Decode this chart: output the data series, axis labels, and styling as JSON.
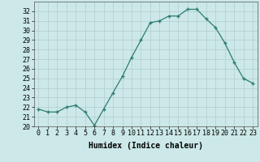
{
  "x": [
    0,
    1,
    2,
    3,
    4,
    5,
    6,
    7,
    8,
    9,
    10,
    11,
    12,
    13,
    14,
    15,
    16,
    17,
    18,
    19,
    20,
    21,
    22,
    23
  ],
  "y": [
    21.8,
    21.5,
    21.5,
    22.0,
    22.2,
    21.5,
    20.1,
    21.8,
    23.5,
    25.2,
    27.2,
    29.0,
    30.8,
    31.0,
    31.5,
    31.5,
    32.2,
    32.2,
    31.2,
    30.3,
    28.7,
    26.7,
    25.0,
    24.5
  ],
  "xlabel": "Humidex (Indice chaleur)",
  "xlim": [
    -0.5,
    23.5
  ],
  "ylim": [
    20,
    33
  ],
  "yticks": [
    20,
    21,
    22,
    23,
    24,
    25,
    26,
    27,
    28,
    29,
    30,
    31,
    32
  ],
  "xticks": [
    0,
    1,
    2,
    3,
    4,
    5,
    6,
    7,
    8,
    9,
    10,
    11,
    12,
    13,
    14,
    15,
    16,
    17,
    18,
    19,
    20,
    21,
    22,
    23
  ],
  "line_color": "#2e7d6e",
  "marker_color": "#2e7d6e",
  "bg_color": "#cce8e8",
  "grid_color": "#b0cccc",
  "axis_fontsize": 6.5,
  "tick_fontsize": 6.0,
  "xlabel_fontsize": 7.0
}
